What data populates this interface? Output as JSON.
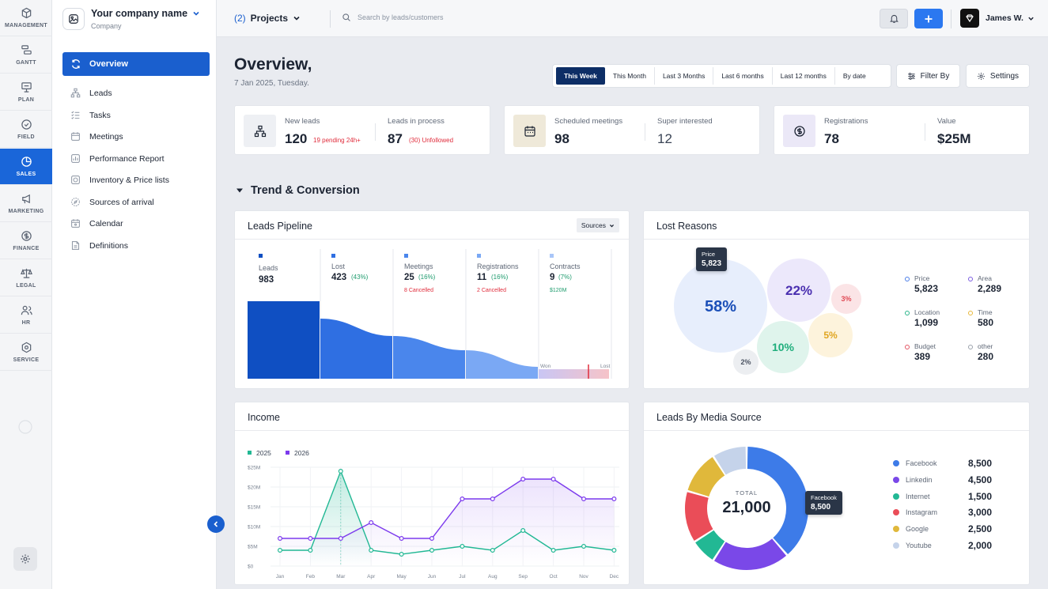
{
  "rail": {
    "items": [
      {
        "label": "MANAGEMENT",
        "icon": "cube-icon"
      },
      {
        "label": "GANTT",
        "icon": "gantt-icon"
      },
      {
        "label": "PLAN",
        "icon": "presentation-icon"
      },
      {
        "label": "FIELD",
        "icon": "check-circle-icon"
      },
      {
        "label": "SALES",
        "icon": "pie-chart-icon",
        "active": true
      },
      {
        "label": "MARKETING",
        "icon": "megaphone-icon"
      },
      {
        "label": "FINANCE",
        "icon": "dollar-circle-icon"
      },
      {
        "label": "LEGAL",
        "icon": "scales-icon"
      },
      {
        "label": "HR",
        "icon": "users-icon"
      },
      {
        "label": "SERVICE",
        "icon": "hexagon-icon"
      }
    ]
  },
  "company": {
    "name": "Your company name",
    "sub": "Company"
  },
  "sidebar": {
    "active": "Overview",
    "items": [
      {
        "label": "Leads",
        "icon": "org-chart-icon"
      },
      {
        "label": "Tasks",
        "icon": "checklist-icon"
      },
      {
        "label": "Meetings",
        "icon": "calendar-icon"
      },
      {
        "label": "Performance Report",
        "icon": "report-icon"
      },
      {
        "label": "Inventory & Price lists",
        "icon": "box-icon"
      },
      {
        "label": "Sources of arrival",
        "icon": "compass-icon"
      },
      {
        "label": "Calendar",
        "icon": "calendar-days-icon"
      },
      {
        "label": "Definitions",
        "icon": "document-icon"
      }
    ]
  },
  "topbar": {
    "projects_count": "(2)",
    "projects_label": "Projects",
    "search_placeholder": "Search by leads/customers",
    "user": "James W."
  },
  "overview": {
    "title": "Overview,",
    "date": "7 Jan 2025, Tuesday.",
    "ranges": [
      "This Week",
      "This Month",
      "Last 3 Months",
      "Last 6 months",
      "Last 12 months",
      "By date"
    ],
    "active_range": "This Week",
    "filter_label": "Filter By",
    "settings_label": "Settings"
  },
  "stats": {
    "new_leads_label": "New leads",
    "new_leads": "120",
    "new_leads_sub": "19 pending 24h+",
    "in_process_label": "Leads in process",
    "in_process": "87",
    "in_process_sub": "(30) Unfollowed",
    "meetings_label": "Scheduled meetings",
    "meetings": "98",
    "super_label": "Super interested",
    "super": "12",
    "reg_label": "Registrations",
    "reg": "78",
    "value_label": "Value",
    "value": "$25M"
  },
  "section_title": "Trend & Conversion",
  "pipeline": {
    "title": "Leads Pipeline",
    "sources_label": "Sources",
    "stages": [
      {
        "name": "Leads",
        "value": "983",
        "pct": "",
        "cancel": "",
        "color": "#0f4fc2"
      },
      {
        "name": "Lost",
        "value": "423",
        "pct": "(43%)",
        "cancel": "",
        "color": "#2f6fe2"
      },
      {
        "name": "Meetings",
        "value": "25",
        "pct": "(16%)",
        "cancel": "8 Cancelled",
        "color": "#4a86ec"
      },
      {
        "name": "Registrations",
        "value": "11",
        "pct": "(16%)",
        "cancel": "2 Cancelled",
        "color": "#7aa8f4"
      },
      {
        "name": "Contracts",
        "value": "9",
        "pct": "(7%)",
        "cancel": "$120M",
        "color": "#a9c6f8"
      }
    ],
    "won_label": "Won",
    "lost_label": "Lost"
  },
  "lost_reasons": {
    "title": "Lost Reasons",
    "tooltip": {
      "name": "Price",
      "value": "5,823"
    },
    "bubbles": [
      {
        "label": "58%",
        "color": "#e7eefc",
        "text": "#1b4fb8"
      },
      {
        "label": "22%",
        "color": "#ece8fb",
        "text": "#4a2fb0"
      },
      {
        "label": "3%",
        "color": "#fbe4e6",
        "text": "#e04a55"
      },
      {
        "label": "5%",
        "color": "#fdf3dc",
        "text": "#e0a520"
      },
      {
        "label": "10%",
        "color": "#dff4ec",
        "text": "#1fae7c"
      },
      {
        "label": "2%",
        "color": "#eceef1",
        "text": "#4b5362"
      }
    ],
    "legend": [
      {
        "name": "Price",
        "value": "5,823",
        "color": "#4a7de8"
      },
      {
        "name": "Area",
        "value": "2,289",
        "color": "#7a5be0"
      },
      {
        "name": "Location",
        "value": "1,099",
        "color": "#2bb58a"
      },
      {
        "name": "Time",
        "value": "580",
        "color": "#e8b83a"
      },
      {
        "name": "Budget",
        "value": "389",
        "color": "#e45563"
      },
      {
        "name": "other",
        "value": "280",
        "color": "#9aa1ab"
      }
    ]
  },
  "income": {
    "title": "Income"
  },
  "chart_data": {
    "type": "line",
    "categories": [
      "Jan",
      "Feb",
      "Mar",
      "Apr",
      "May",
      "Jun",
      "Jul",
      "Aug",
      "Sep",
      "Oct",
      "Nov",
      "Dec"
    ],
    "series": [
      {
        "name": "2025",
        "color": "#22b894",
        "values": [
          4,
          4,
          24,
          4,
          3,
          4,
          5,
          4,
          9,
          4,
          5,
          4
        ]
      },
      {
        "name": "2026",
        "color": "#7c3aed",
        "values": [
          7,
          7,
          7,
          11,
          7,
          7,
          17,
          17,
          22,
          22,
          17,
          17
        ]
      }
    ],
    "y_ticks": [
      "$0",
      "$5M",
      "$10M",
      "$15M",
      "$20M",
      "$25M"
    ],
    "ylim": [
      0,
      25
    ],
    "grid": true,
    "legend": "top-left"
  },
  "media": {
    "title": "Leads By Media Source",
    "total_label": "TOTAL",
    "total": "21,000",
    "tooltip": {
      "name": "Facebook",
      "value": "8,500"
    },
    "sources": [
      {
        "name": "Facebook",
        "value": "8,500",
        "num": 8500,
        "color": "#3d7be8"
      },
      {
        "name": "Linkedin",
        "value": "4,500",
        "num": 4500,
        "color": "#7a48e8"
      },
      {
        "name": "Internet",
        "value": "1,500",
        "num": 1500,
        "color": "#22b894"
      },
      {
        "name": "Instagram",
        "value": "3,000",
        "num": 3000,
        "color": "#ea4d58"
      },
      {
        "name": "Google",
        "value": "2,500",
        "num": 2500,
        "color": "#e0b83b"
      },
      {
        "name": "Youtube",
        "value": "2,000",
        "num": 2000,
        "color": "#c5d3ea"
      }
    ]
  }
}
